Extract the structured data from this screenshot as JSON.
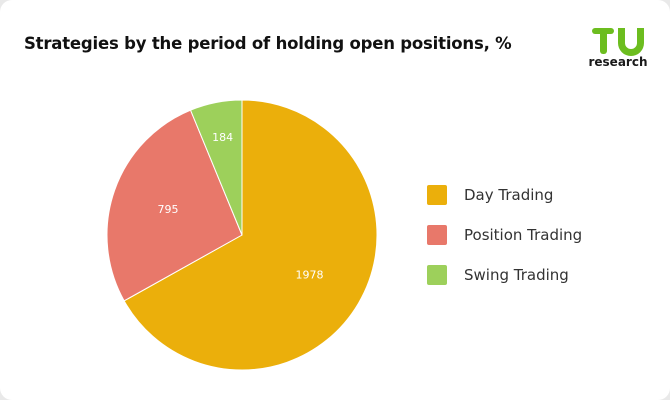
{
  "title": "Strategies by the period of holding open positions, %",
  "logo": {
    "mark": "TU",
    "sub": "research",
    "color": "#6cbd1f"
  },
  "chart_data": {
    "type": "pie",
    "title": "Strategies by the period of holding open positions, %",
    "legend_position": "right",
    "slices": [
      {
        "name": "Day Trading",
        "value": 1978,
        "color": "#ebaf0b"
      },
      {
        "name": "Position Trading",
        "value": 795,
        "color": "#e8786a"
      },
      {
        "name": "Swing Trading",
        "value": 184,
        "color": "#9dd05b"
      }
    ]
  }
}
